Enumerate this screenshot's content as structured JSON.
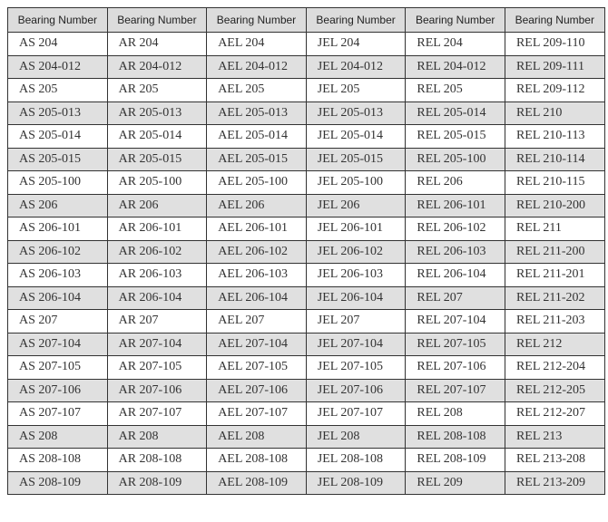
{
  "headers": [
    "Bearing Number",
    "Bearing Number",
    "Bearing Number",
    "Bearing Number",
    "Bearing Number",
    "Bearing Number"
  ],
  "rows": [
    [
      "AS 204",
      "AR 204",
      "AEL 204",
      "JEL 204",
      "REL 204",
      "REL 209-110"
    ],
    [
      "AS 204-012",
      "AR 204-012",
      "AEL 204-012",
      "JEL 204-012",
      "REL 204-012",
      "REL 209-111"
    ],
    [
      "AS 205",
      "AR 205",
      "AEL 205",
      "JEL 205",
      "REL 205",
      "REL 209-112"
    ],
    [
      "AS 205-013",
      "AR 205-013",
      "AEL 205-013",
      "JEL 205-013",
      "REL 205-014",
      "REL 210"
    ],
    [
      "AS 205-014",
      "AR 205-014",
      "AEL 205-014",
      "JEL 205-014",
      "REL 205-015",
      "REL 210-113"
    ],
    [
      "AS 205-015",
      "AR 205-015",
      "AEL 205-015",
      "JEL 205-015",
      "REL 205-100",
      "REL 210-114"
    ],
    [
      "AS 205-100",
      "AR 205-100",
      "AEL 205-100",
      "JEL 205-100",
      "REL 206",
      "REL 210-115"
    ],
    [
      "AS 206",
      "AR 206",
      "AEL 206",
      "JEL 206",
      "REL 206-101",
      "REL 210-200"
    ],
    [
      "AS 206-101",
      "AR 206-101",
      "AEL 206-101",
      "JEL 206-101",
      "REL 206-102",
      "REL 211"
    ],
    [
      "AS 206-102",
      "AR 206-102",
      "AEL 206-102",
      "JEL 206-102",
      "REL 206-103",
      "REL 211-200"
    ],
    [
      "AS 206-103",
      "AR 206-103",
      "AEL 206-103",
      "JEL 206-103",
      "REL 206-104",
      "REL 211-201"
    ],
    [
      "AS 206-104",
      "AR 206-104",
      "AEL 206-104",
      "JEL 206-104",
      "REL 207",
      "REL 211-202"
    ],
    [
      "AS 207",
      "AR 207",
      "AEL 207",
      "JEL 207",
      "REL 207-104",
      "REL 211-203"
    ],
    [
      "AS 207-104",
      "AR 207-104",
      "AEL 207-104",
      "JEL 207-104",
      "REL 207-105",
      "REL 212"
    ],
    [
      "AS 207-105",
      "AR 207-105",
      "AEL 207-105",
      "JEL 207-105",
      "REL 207-106",
      "REL 212-204"
    ],
    [
      "AS 207-106",
      "AR 207-106",
      "AEL 207-106",
      "JEL 207-106",
      "REL 207-107",
      "REL 212-205"
    ],
    [
      "AS 207-107",
      "AR 207-107",
      "AEL 207-107",
      "JEL 207-107",
      "REL 208",
      "REL 212-207"
    ],
    [
      "AS 208",
      "AR 208",
      "AEL 208",
      "JEL 208",
      "REL 208-108",
      "REL 213"
    ],
    [
      "AS 208-108",
      "AR 208-108",
      "AEL 208-108",
      "JEL 208-108",
      "REL 208-109",
      "REL 213-208"
    ],
    [
      "AS 208-109",
      "AR 208-109",
      "AEL 208-109",
      "JEL 208-109",
      "REL 209",
      "REL 213-209"
    ]
  ],
  "colors": {
    "header_bg": "#dcdcdc",
    "alt_row_bg": "#e0e0e0",
    "border": "#333333"
  }
}
